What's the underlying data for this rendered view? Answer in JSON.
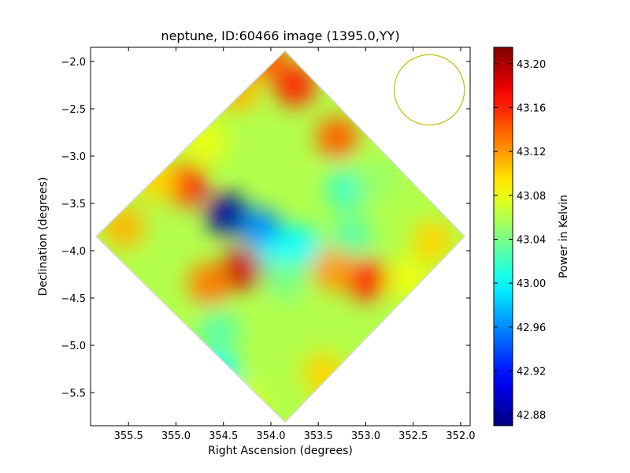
{
  "chart_data": {
    "type": "heatmap",
    "title": "neptune, ID:60466 image (1395.0,YY)",
    "xlabel": "Right Ascension (degrees)",
    "ylabel": "Declination (degrees)",
    "xlim": [
      355.9,
      351.9
    ],
    "ylim": [
      -5.85,
      -1.85
    ],
    "x_axis_reversed": true,
    "xticks": [
      355.5,
      355.0,
      354.5,
      354.0,
      353.5,
      353.0,
      352.5,
      352.0
    ],
    "xtick_labels": [
      "355.5",
      "355.0",
      "354.5",
      "354.0",
      "353.5",
      "353.0",
      "352.5",
      "352.0"
    ],
    "yticks": [
      -2.0,
      -2.5,
      -3.0,
      -3.5,
      -4.0,
      -4.5,
      -5.0,
      -5.5
    ],
    "ytick_labels": [
      "−2.0",
      "−2.5",
      "−3.0",
      "−3.5",
      "−4.0",
      "−4.5",
      "−5.0",
      "−5.5"
    ],
    "colorbar": {
      "label": "Power in Kelvin",
      "colormap": "jet",
      "range": [
        42.87,
        43.215
      ],
      "ticks": [
        42.88,
        42.92,
        42.96,
        43.0,
        43.04,
        43.08,
        43.12,
        43.16,
        43.2
      ],
      "tick_labels": [
        "42.88",
        "42.92",
        "42.96",
        "43.00",
        "43.04",
        "43.08",
        "43.12",
        "43.16",
        "43.20"
      ]
    },
    "image_footprint": {
      "shape": "diamond",
      "vertices_radec": [
        [
          353.85,
          -1.88
        ],
        [
          355.85,
          -3.85
        ],
        [
          353.85,
          -5.82
        ],
        [
          351.95,
          -3.85
        ]
      ]
    },
    "background_value": 43.06,
    "features": [
      {
        "ra": 354.45,
        "dec": -3.62,
        "value": 42.88
      },
      {
        "ra": 354.1,
        "dec": -3.78,
        "value": 42.96
      },
      {
        "ra": 353.7,
        "dec": -3.95,
        "value": 43.0
      },
      {
        "ra": 353.95,
        "dec": -4.08,
        "value": 43.0
      },
      {
        "ra": 353.2,
        "dec": -3.35,
        "value": 43.02
      },
      {
        "ra": 353.15,
        "dec": -3.85,
        "value": 43.03
      },
      {
        "ra": 354.55,
        "dec": -4.85,
        "value": 43.03
      },
      {
        "ra": 354.55,
        "dec": -5.3,
        "value": 43.0
      },
      {
        "ra": 353.85,
        "dec": -4.3,
        "value": 43.04
      },
      {
        "ra": 354.05,
        "dec": -1.95,
        "value": 43.14
      },
      {
        "ra": 353.75,
        "dec": -2.25,
        "value": 43.16
      },
      {
        "ra": 354.35,
        "dec": -2.3,
        "value": 43.11
      },
      {
        "ra": 353.3,
        "dec": -2.8,
        "value": 43.14
      },
      {
        "ra": 354.9,
        "dec": -3.3,
        "value": 43.17
      },
      {
        "ra": 355.2,
        "dec": -3.25,
        "value": 43.1
      },
      {
        "ra": 354.3,
        "dec": -4.2,
        "value": 43.19
      },
      {
        "ra": 354.65,
        "dec": -4.35,
        "value": 43.13
      },
      {
        "ra": 353.0,
        "dec": -4.3,
        "value": 43.16
      },
      {
        "ra": 353.35,
        "dec": -4.2,
        "value": 43.12
      },
      {
        "ra": 352.55,
        "dec": -4.3,
        "value": 43.08
      },
      {
        "ra": 355.55,
        "dec": -3.75,
        "value": 43.11
      },
      {
        "ra": 352.3,
        "dec": -3.9,
        "value": 43.1
      },
      {
        "ra": 353.45,
        "dec": -5.3,
        "value": 43.1
      },
      {
        "ra": 354.25,
        "dec": -5.6,
        "value": 43.07
      },
      {
        "ra": 352.9,
        "dec": -3.25,
        "value": 43.05
      },
      {
        "ra": 354.7,
        "dec": -2.85,
        "value": 43.08
      }
    ],
    "beam_circle": {
      "ra": 352.33,
      "dec": -2.3,
      "radius_deg": 0.37,
      "color": "#bfbf00"
    },
    "grid": false,
    "legend": "none"
  }
}
